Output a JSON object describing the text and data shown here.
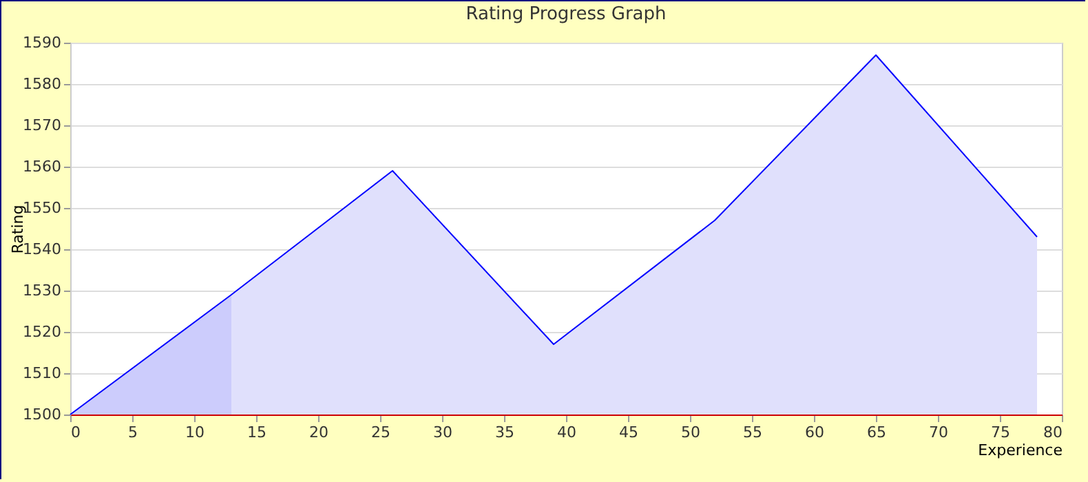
{
  "chart_data": {
    "type": "area",
    "title": "Rating Progress Graph",
    "xlabel": "Experience",
    "ylabel": "Rating",
    "series": [
      {
        "type": "area",
        "color": "#ccccfc",
        "x": [
          0,
          13
        ],
        "values": [
          1500,
          1529
        ]
      },
      {
        "type": "area",
        "color": "#e0e0fc",
        "x": [
          13,
          26,
          39,
          52,
          65,
          78
        ],
        "values": [
          1529,
          1559,
          1517,
          1547,
          1587,
          1543
        ]
      },
      {
        "type": "line",
        "color": "#0000ff",
        "x": [
          0,
          13,
          26,
          39,
          52,
          65,
          78
        ],
        "values": [
          1500,
          1529,
          1559,
          1517,
          1547,
          1587,
          1543
        ]
      }
    ],
    "xlim": [
      0,
      80
    ],
    "xticks": [
      0,
      5,
      10,
      15,
      20,
      25,
      30,
      35,
      40,
      45,
      50,
      55,
      60,
      65,
      70,
      75,
      80
    ],
    "ylim": [
      1500,
      1590
    ],
    "yticks": [
      1500,
      1510,
      1520,
      1530,
      1540,
      1550,
      1560,
      1570,
      1580,
      1590
    ],
    "grid": "y"
  }
}
